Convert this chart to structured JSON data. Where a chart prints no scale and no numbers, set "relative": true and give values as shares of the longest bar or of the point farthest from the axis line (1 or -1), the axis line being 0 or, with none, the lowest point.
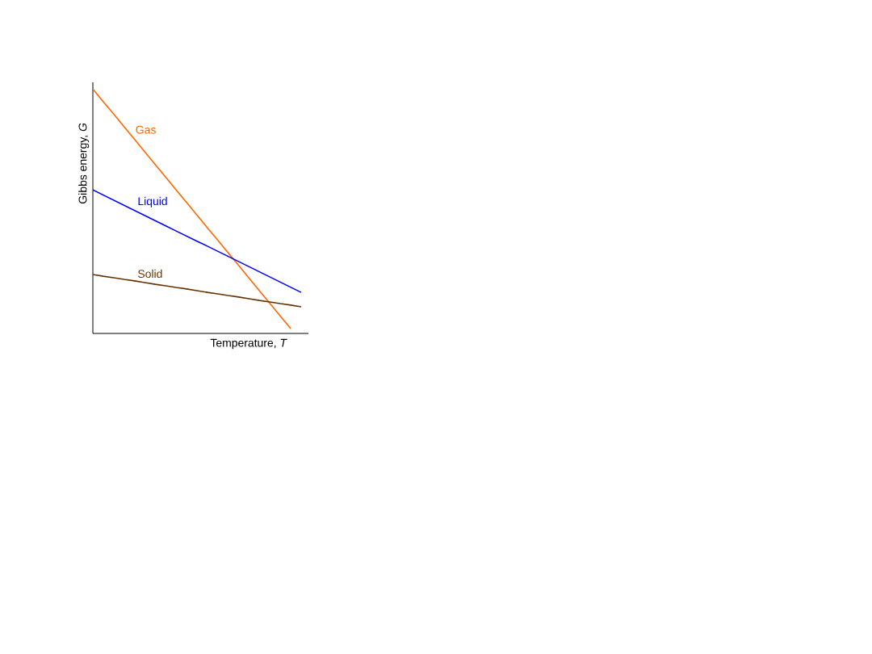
{
  "chart_data": {
    "type": "line",
    "relative": true,
    "xlabel": "Temperature, *T*",
    "ylabel": "Gibbs energy, *G*",
    "legend": false,
    "marker": "none",
    "line_style": "solid",
    "categories": [
      null,
      null,
      null,
      null,
      null,
      null,
      null,
      null,
      null,
      null,
      null,
      null,
      null,
      null,
      null,
      null,
      null,
      null,
      null,
      null,
      null
    ],
    "series": [
      {
        "name": "Gas",
        "color": "#ff6600",
        "values": [
          1.0,
          0.948,
          0.897,
          0.845,
          0.794,
          0.742,
          0.69,
          0.639,
          0.587,
          0.536,
          0.484,
          0.432,
          0.381,
          0.329,
          0.278,
          0.226,
          0.174,
          0.123,
          0.071,
          0.02,
          null
        ]
      },
      {
        "name": "Liquid",
        "color": "#0000ff",
        "values": [
          0.587,
          0.566,
          0.545,
          0.524,
          0.503,
          0.482,
          0.461,
          0.44,
          0.419,
          0.398,
          0.377,
          0.357,
          0.336,
          0.315,
          0.294,
          0.273,
          0.252,
          0.231,
          0.21,
          0.189,
          0.168
        ]
      },
      {
        "name": "Solid",
        "color": "#663300",
        "values": [
          0.241,
          0.234,
          0.228,
          0.221,
          0.215,
          0.208,
          0.201,
          0.195,
          0.188,
          0.182,
          0.175,
          0.168,
          0.162,
          0.155,
          0.149,
          0.142,
          0.135,
          0.129,
          0.122,
          0.116,
          0.109
        ]
      }
    ]
  }
}
